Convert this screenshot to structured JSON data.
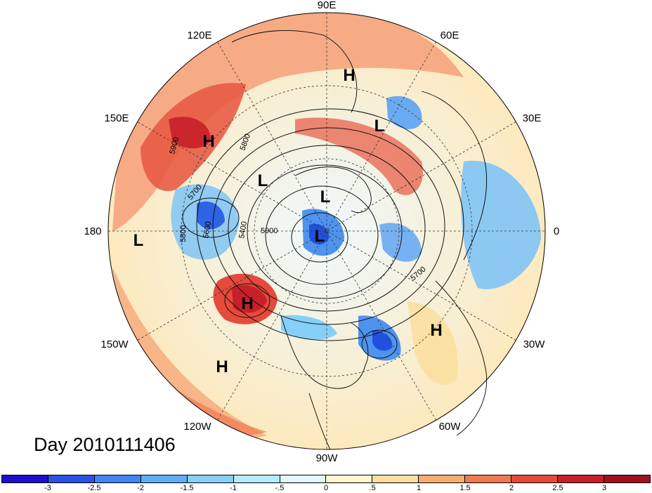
{
  "map": {
    "title": "Day 2010111406",
    "longitude_labels": [
      "90E",
      "60E",
      "30E",
      "0",
      "30W",
      "60W",
      "90W",
      "120W",
      "150W",
      "180",
      "150E",
      "120E"
    ],
    "contour_labels": [
      "5900",
      "5800",
      "5700",
      "5800",
      "5600",
      "5400",
      "5900",
      "5700"
    ],
    "pressure_systems": [
      {
        "type": "H",
        "region": "Siberia / Arctic"
      },
      {
        "type": "L",
        "region": "Eastern Europe"
      },
      {
        "type": "H",
        "region": "Northeast Asia"
      },
      {
        "type": "L",
        "region": "East Asia"
      },
      {
        "type": "L",
        "region": "Arctic Ocean"
      },
      {
        "type": "L",
        "region": "North Pacific (180)"
      },
      {
        "type": "L",
        "region": "Canadian Arctic"
      },
      {
        "type": "H",
        "region": "Northeast Pacific"
      },
      {
        "type": "H",
        "region": "Central North Atlantic"
      },
      {
        "type": "H",
        "region": "Subtropical Pacific"
      }
    ],
    "colorbar": {
      "colors": [
        "#1e0fcf",
        "#2a52e6",
        "#3f86f0",
        "#5fadf5",
        "#86d0f8",
        "#b4ecfb",
        "#e3f8fd",
        "#fff7d0",
        "#fbdfa0",
        "#f6ad70",
        "#ef7a50",
        "#e54a3a",
        "#c81f2a",
        "#a0101e"
      ],
      "tick_labels": [
        "-3",
        "-2.5",
        "-2",
        "-1.5",
        "-1",
        "-.5",
        "0",
        ".5",
        "1",
        "1.5",
        "2",
        "2.5",
        "3"
      ]
    }
  }
}
